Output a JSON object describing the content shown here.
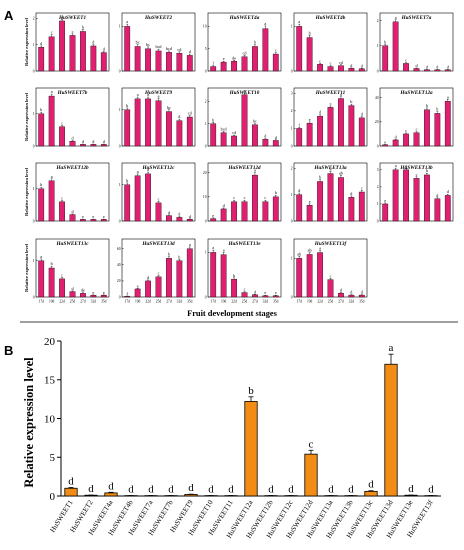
{
  "panel_a_label": "A",
  "panel_b_label": "B",
  "colors": {
    "bar_a": "#e01f71",
    "bar_b": "#f28c14",
    "axis": "#000000",
    "error": "#000000"
  },
  "chart_data": [
    {
      "type": "bar",
      "panel": "A",
      "xlabel": "Fruit development stages",
      "ylabel": "Relative expression level",
      "categories": [
        "17d",
        "19d",
        "22d",
        "25d",
        "27d",
        "32d",
        "35d"
      ],
      "subplots": [
        {
          "title": "HuSWEET1",
          "yticks": [
            0,
            1,
            2
          ],
          "ylim": [
            0,
            2.2
          ],
          "values": [
            0.9,
            1.3,
            1.9,
            1.35,
            1.5,
            0.95,
            0.7
          ],
          "errors": [
            0.05,
            0.08,
            0.06,
            0.06,
            0.08,
            0.05,
            0.04
          ],
          "sig": [
            "d",
            "c",
            "a",
            "c",
            "b",
            "d",
            "d"
          ]
        },
        {
          "title": "HuSWEET2",
          "yticks": [
            0,
            1
          ],
          "ylim": [
            0,
            1.3
          ],
          "values": [
            1.0,
            0.55,
            0.5,
            0.45,
            0.42,
            0.4,
            0.35
          ],
          "errors": [
            0.05,
            0.04,
            0.04,
            0.04,
            0.03,
            0.03,
            0.03
          ],
          "sig": [
            "a",
            "bc",
            "bc",
            "bcd",
            "bcd",
            "cd",
            "d"
          ]
        },
        {
          "title": "HuSWEET4a",
          "yticks": [
            0,
            5,
            10
          ],
          "ylim": [
            0,
            13
          ],
          "values": [
            1.0,
            2.0,
            2.2,
            3.2,
            5.5,
            9.5,
            3.8
          ],
          "errors": [
            0.2,
            0.2,
            0.2,
            0.3,
            0.4,
            0.6,
            0.3
          ],
          "sig": [
            "f",
            "e",
            "de",
            "cd",
            "b",
            "a",
            "c"
          ]
        },
        {
          "title": "HuSWEET4b",
          "yticks": [
            0,
            1
          ],
          "ylim": [
            0,
            1.3
          ],
          "values": [
            1.0,
            0.75,
            0.15,
            0.1,
            0.12,
            0.06,
            0.05
          ],
          "errors": [
            0.05,
            0.05,
            0.02,
            0.02,
            0.02,
            0.01,
            0.01
          ],
          "sig": [
            "a",
            "b",
            "c",
            "c",
            "cd",
            "d",
            "d"
          ]
        },
        {
          "title": "HuSWEET7a",
          "yticks": [
            0,
            1,
            2
          ],
          "ylim": [
            0,
            2.3
          ],
          "values": [
            1.0,
            1.95,
            0.3,
            0.1,
            0.05,
            0.05,
            0.05
          ],
          "errors": [
            0.05,
            0.08,
            0.03,
            0.02,
            0.01,
            0.01,
            0.01
          ],
          "sig": [
            "b",
            "a",
            "c",
            "d",
            "d",
            "d",
            "d"
          ]
        },
        {
          "title": "HuSWEET7b",
          "yticks": [
            0,
            1
          ],
          "ylim": [
            0,
            1.8
          ],
          "values": [
            1.0,
            1.55,
            0.6,
            0.15,
            0.05,
            0.05,
            0.05
          ],
          "errors": [
            0.05,
            0.06,
            0.04,
            0.02,
            0.01,
            0.01,
            0.01
          ],
          "sig": [
            "b",
            "a",
            "c",
            "d",
            "d",
            "d",
            "d"
          ]
        },
        {
          "title": "HuSWEET9",
          "yticks": [
            0,
            1
          ],
          "ylim": [
            0,
            1.6
          ],
          "values": [
            1.0,
            1.3,
            1.3,
            1.25,
            0.95,
            0.7,
            0.8
          ],
          "errors": [
            0.05,
            0.05,
            0.05,
            0.06,
            0.05,
            0.04,
            0.04
          ],
          "sig": [
            "b",
            "a",
            "a",
            "a",
            "bc",
            "d",
            "cd"
          ]
        },
        {
          "title": "HuSWEET10",
          "yticks": [
            0,
            1,
            2
          ],
          "ylim": [
            0,
            2.6
          ],
          "values": [
            1.0,
            0.6,
            0.45,
            2.3,
            0.95,
            0.3,
            0.25
          ],
          "errors": [
            0.06,
            0.05,
            0.04,
            0.08,
            0.05,
            0.03,
            0.03
          ],
          "sig": [
            "b",
            "bcd",
            "cd",
            "a",
            "bc",
            "d",
            "d"
          ]
        },
        {
          "title": "HuSWEET11",
          "yticks": [
            0,
            1,
            2,
            3
          ],
          "ylim": [
            0,
            3.3
          ],
          "values": [
            1.0,
            1.3,
            1.7,
            2.2,
            2.7,
            2.3,
            1.6
          ],
          "errors": [
            0.06,
            0.07,
            0.08,
            0.08,
            0.1,
            0.08,
            0.07
          ],
          "sig": [
            "f",
            "e",
            "d",
            "c",
            "a",
            "b",
            "d"
          ]
        },
        {
          "title": "HuSWEET12a",
          "yticks": [
            0,
            20,
            40
          ],
          "ylim": [
            0,
            48
          ],
          "values": [
            1.0,
            5.0,
            10.0,
            11.0,
            30.0,
            27.0,
            37.0
          ],
          "errors": [
            0.3,
            0.5,
            0.8,
            0.8,
            1.5,
            1.4,
            1.6
          ],
          "sig": [
            "e",
            "d",
            "c",
            "c",
            "b",
            "b",
            "a"
          ]
        },
        {
          "title": "HuSWEET12b",
          "yticks": [
            0,
            1
          ],
          "ylim": [
            0,
            1.8
          ],
          "values": [
            1.0,
            1.25,
            0.6,
            0.2,
            0.05,
            0.05,
            0.05
          ],
          "errors": [
            0.05,
            0.06,
            0.04,
            0.02,
            0.01,
            0.01,
            0.01
          ],
          "sig": [
            "b",
            "a",
            "c",
            "d",
            "e",
            "e",
            "e"
          ]
        },
        {
          "title": "HuSWEET12c",
          "yticks": [
            0,
            1
          ],
          "ylim": [
            0,
            1.6
          ],
          "values": [
            1.0,
            1.25,
            1.3,
            0.5,
            0.15,
            0.1,
            0.05
          ],
          "errors": [
            0.05,
            0.05,
            0.05,
            0.04,
            0.02,
            0.02,
            0.01
          ],
          "sig": [
            "b",
            "a",
            "a",
            "c",
            "d",
            "d",
            "d"
          ]
        },
        {
          "title": "HuSWEET12d",
          "yticks": [
            0,
            10,
            20
          ],
          "ylim": [
            0,
            24
          ],
          "values": [
            1.0,
            5.0,
            8.0,
            8.0,
            19.0,
            8.0,
            10.0
          ],
          "errors": [
            0.3,
            0.4,
            0.6,
            0.6,
            1.0,
            0.6,
            0.7
          ],
          "sig": [
            "e",
            "d",
            "c",
            "c",
            "a",
            "c",
            "b"
          ]
        },
        {
          "title": "HuSWEET13a",
          "yticks": [
            0,
            1,
            2
          ],
          "ylim": [
            0,
            2.2
          ],
          "values": [
            1.0,
            0.6,
            1.5,
            1.8,
            1.65,
            0.9,
            1.1
          ],
          "errors": [
            0.06,
            0.05,
            0.07,
            0.08,
            0.08,
            0.05,
            0.06
          ],
          "sig": [
            "d",
            "e",
            "b",
            "a",
            "ab",
            "d",
            "c"
          ]
        },
        {
          "title": "HuSWEET13b",
          "yticks": [
            0,
            1,
            2,
            3
          ],
          "ylim": [
            0,
            3.4
          ],
          "values": [
            1.0,
            3.0,
            3.0,
            2.5,
            2.7,
            1.3,
            1.5
          ],
          "errors": [
            0.06,
            0.1,
            0.1,
            0.09,
            0.1,
            0.06,
            0.07
          ],
          "sig": [
            "e",
            "a",
            "a",
            "c",
            "b",
            "d",
            "d"
          ]
        },
        {
          "title": "HuSWEET13c",
          "yticks": [
            0,
            1
          ],
          "ylim": [
            0,
            1.6
          ],
          "values": [
            1.0,
            0.8,
            0.5,
            0.15,
            0.1,
            0.05,
            0.05
          ],
          "errors": [
            0.05,
            0.05,
            0.04,
            0.02,
            0.02,
            0.01,
            0.01
          ],
          "sig": [
            "a",
            "b",
            "c",
            "d",
            "de",
            "e",
            "e"
          ]
        },
        {
          "title": "HuSWEET13d",
          "yticks": [
            0,
            20,
            40,
            60
          ],
          "ylim": [
            0,
            72
          ],
          "values": [
            1.0,
            10.0,
            20.0,
            25.0,
            48.0,
            45.0,
            60.0
          ],
          "errors": [
            0.3,
            0.8,
            1.2,
            1.4,
            2.0,
            1.8,
            2.2
          ],
          "sig": [
            "f",
            "e",
            "d",
            "c",
            "b",
            "b",
            "a"
          ]
        },
        {
          "title": "HuSWEET13e",
          "yticks": [
            0,
            1
          ],
          "ylim": [
            0,
            1.3
          ],
          "values": [
            1.0,
            0.95,
            0.4,
            0.1,
            0.05,
            0.03,
            0.03
          ],
          "errors": [
            0.05,
            0.05,
            0.03,
            0.02,
            0.01,
            0.01,
            0.01
          ],
          "sig": [
            "a",
            "a",
            "b",
            "c",
            "d",
            "e",
            "e"
          ]
        },
        {
          "title": "HuSWEET13f",
          "yticks": [
            0,
            1
          ],
          "ylim": [
            0,
            1.5
          ],
          "values": [
            1.0,
            1.1,
            1.15,
            0.45,
            0.1,
            0.05,
            0.05
          ],
          "errors": [
            0.05,
            0.05,
            0.05,
            0.03,
            0.02,
            0.01,
            0.01
          ],
          "sig": [
            "ab",
            "ab",
            "a",
            "c",
            "d",
            "d",
            "d"
          ]
        }
      ]
    },
    {
      "type": "bar",
      "panel": "B",
      "ylabel": "Relative expression level",
      "ylim": [
        0,
        20
      ],
      "yticks": [
        0,
        5,
        10,
        15,
        20
      ],
      "categories": [
        "HuSWEET1",
        "HuSWEET2",
        "HuSWEET4a",
        "HuSWEET4b",
        "HuSWEET7a",
        "HuSWEET7b",
        "HuSWEET9",
        "HuSWEET10",
        "HuSWEET11",
        "HuSWEET12a",
        "HuSWEET12b",
        "HuSWEET12c",
        "HuSWEET12d",
        "HuSWEET13a",
        "HuSWEET13b",
        "HuSWEET13c",
        "HuSWEET13d",
        "HuSWEET13e",
        "HuSWEET13f"
      ],
      "values": [
        1.0,
        0.1,
        0.4,
        0.05,
        0.05,
        0.05,
        0.2,
        0.05,
        0.05,
        12.2,
        0.05,
        0.05,
        5.4,
        0.05,
        0.05,
        0.6,
        17.0,
        0.1,
        0.05
      ],
      "errors": [
        0.1,
        0.02,
        0.08,
        0.01,
        0.01,
        0.01,
        0.04,
        0.01,
        0.01,
        0.6,
        0.01,
        0.01,
        0.5,
        0.01,
        0.01,
        0.08,
        1.3,
        0.02,
        0.01
      ],
      "sig": [
        "d",
        "d",
        "d",
        "d",
        "d",
        "d",
        "d",
        "d",
        "d",
        "b",
        "d",
        "d",
        "c",
        "d",
        "d",
        "d",
        "a",
        "d",
        "d"
      ]
    }
  ]
}
